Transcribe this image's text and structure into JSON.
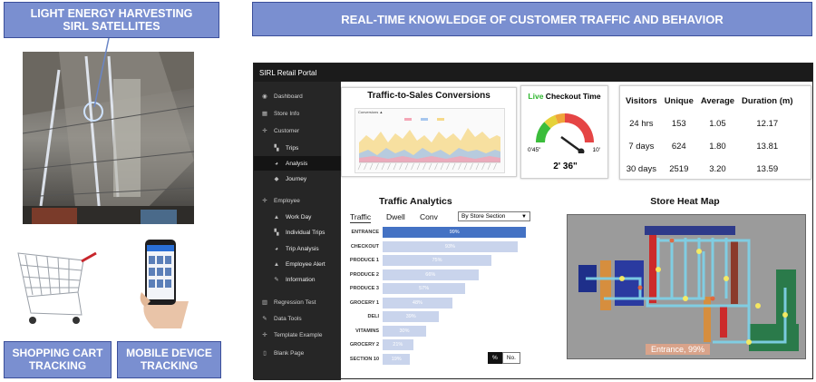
{
  "labels": {
    "satellites": [
      "LIGHT ENERGY HARVESTING",
      "SIRL SATELLITES"
    ],
    "cart": [
      "SHOPPING CART",
      "TRACKING"
    ],
    "mobile": [
      "MOBILE DEVICE",
      "TRACKING"
    ],
    "header": "REAL-TIME KNOWLEDGE OF CUSTOMER TRAFFIC AND BEHAVIOR"
  },
  "portal": {
    "title": "SIRL Retail Portal",
    "sidebar": [
      {
        "label": "Dashboard",
        "icon": "speedometer-icon",
        "glyph": "◉",
        "level": "top"
      },
      {
        "label": "Store Info",
        "icon": "table-icon",
        "glyph": "▦",
        "level": "top"
      },
      {
        "label": "Customer",
        "icon": "crosshair-icon",
        "glyph": "✛",
        "level": "top"
      },
      {
        "label": "Trips",
        "icon": "map-icon",
        "glyph": "▚",
        "level": "sub"
      },
      {
        "label": "Analysis",
        "icon": "pie-chart-icon",
        "glyph": "◕",
        "level": "sub",
        "active": true
      },
      {
        "label": "Journey",
        "icon": "cube-icon",
        "glyph": "◆",
        "level": "sub"
      },
      {
        "label": "Employee",
        "icon": "crosshair-icon",
        "glyph": "✛",
        "level": "top"
      },
      {
        "label": "Work Day",
        "icon": "upload-icon",
        "glyph": "▲",
        "level": "sub"
      },
      {
        "label": "Individual Trips",
        "icon": "map-icon",
        "glyph": "▚",
        "level": "sub"
      },
      {
        "label": "Trip Analysis",
        "icon": "pie-chart-icon",
        "glyph": "◕",
        "level": "sub"
      },
      {
        "label": "Employee Alert",
        "icon": "warning-icon",
        "glyph": "▲",
        "level": "sub"
      },
      {
        "label": "Information",
        "icon": "edit-icon",
        "glyph": "✎",
        "level": "sub"
      },
      {
        "label": "Regression Test",
        "icon": "bar-chart-icon",
        "glyph": "▥",
        "level": "top"
      },
      {
        "label": "Data Tools",
        "icon": "wrench-icon",
        "glyph": "✎",
        "level": "top"
      },
      {
        "label": "Template Example",
        "icon": "crosshair-icon",
        "glyph": "✛",
        "level": "top"
      },
      {
        "label": "Blank Page",
        "icon": "file-icon",
        "glyph": "▯",
        "level": "top"
      }
    ],
    "conversions": {
      "title": "Traffic-to-Sales Conversions",
      "mini_title": "Conversions ▲"
    },
    "checkout": {
      "title_live": "Live",
      "title_rest": " Checkout Time",
      "min_label": "0'45\"",
      "max_label": "10'",
      "value_label": "2' 36\"",
      "gauge_fraction": 0.25,
      "colors": [
        "#3bbd3b",
        "#e5d23a",
        "#f0a43a",
        "#e54545"
      ]
    },
    "stats": {
      "headers": [
        "Visitors",
        "Unique",
        "Average",
        "Duration (m)"
      ],
      "rows": [
        [
          "24 hrs",
          "153",
          "1.05",
          "12.17"
        ],
        [
          "7 days",
          "624",
          "1.80",
          "13.81"
        ],
        [
          "30 days",
          "2519",
          "3.20",
          "13.59"
        ]
      ]
    },
    "traffic": {
      "title": "Traffic Analytics",
      "tabs": [
        "Traffic",
        "Dwell",
        "Conv"
      ],
      "active_tab": "Traffic",
      "select": "By Store Section",
      "toggle": [
        "%",
        "No."
      ]
    },
    "heatmap": {
      "title": "Store Heat Map",
      "callout": "Entrance, 99%"
    }
  },
  "chart_data": {
    "type": "bar",
    "orientation": "horizontal",
    "categories": [
      "ENTRANCE",
      "CHECKOUT",
      "PRODUCE 1",
      "PRODUCE 2",
      "PRODUCE 3",
      "GROCERY 1",
      "DELI",
      "VITAMINS",
      "GROCERY 2",
      "SECTION 10"
    ],
    "values": [
      99,
      93,
      75,
      66,
      57,
      48,
      39,
      30,
      21,
      19
    ],
    "value_labels": [
      "99%",
      "93%",
      "75%",
      "66%",
      "57%",
      "48%",
      "39%",
      "30%",
      "21%",
      "19%"
    ],
    "highlight_color": "#4472c4",
    "bar_color": "#c9d4ec",
    "xlim": [
      0,
      100
    ]
  }
}
